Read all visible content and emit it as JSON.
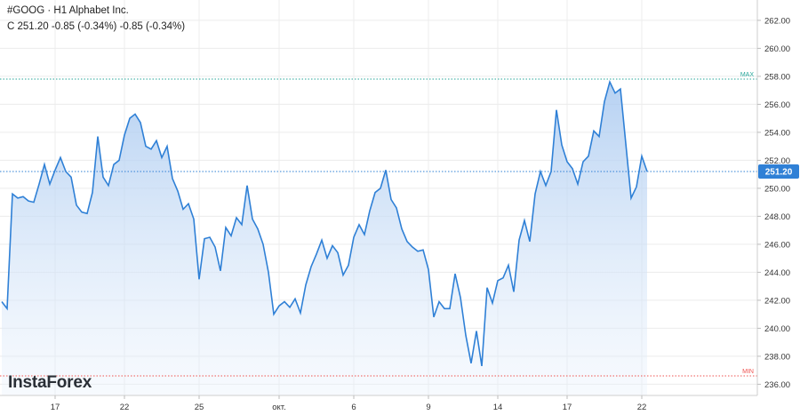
{
  "header": {
    "symbol_line": "#GOOG · H1 Alphabet Inc.",
    "quote_line": "C 251.20 -0.85 (-0.34%) -0.85 (-0.34%)"
  },
  "brand": "InstaForex",
  "colors": {
    "line": "#2f80d6",
    "fill_top": "#a9c9f0",
    "max_line": "#26a69a",
    "min_line": "#ef5350",
    "price_badge": "#2f80d6"
  },
  "chart_data": {
    "type": "area",
    "title": "",
    "xlabel": "",
    "ylabel": "",
    "ylim": [
      235.2,
      263.2
    ],
    "y_ticks": [
      "262.00",
      "260.00",
      "258.00",
      "256.00",
      "254.00",
      "252.00",
      "250.00",
      "248.00",
      "246.00",
      "244.00",
      "242.00",
      "240.00",
      "238.00",
      "236.00"
    ],
    "x_ticks": [
      {
        "label": "17",
        "index": 10
      },
      {
        "label": "22",
        "index": 23
      },
      {
        "label": "25",
        "index": 37
      },
      {
        "label": "окт.",
        "index": 52
      },
      {
        "label": "6",
        "index": 66
      },
      {
        "label": "9",
        "index": 80
      },
      {
        "label": "14",
        "index": 93
      },
      {
        "label": "17",
        "index": 106
      },
      {
        "label": "22",
        "index": 120
      }
    ],
    "max_label": "MAX",
    "max_value": 257.8,
    "min_label": "MIN",
    "min_value": 236.6,
    "last_price_label": "251.20",
    "last_price": 251.2,
    "grid": true,
    "series": [
      {
        "values": [
          241.9,
          241.4,
          249.6,
          249.3,
          249.4,
          249.1,
          249.0,
          250.3,
          251.7,
          250.3,
          251.3,
          252.2,
          251.2,
          250.8,
          248.8,
          248.3,
          248.2,
          249.7,
          253.7,
          250.8,
          250.2,
          251.7,
          252.0,
          253.8,
          255.0,
          255.3,
          254.7,
          253.0,
          252.8,
          253.4,
          252.2,
          253.0,
          250.7,
          249.8,
          248.5,
          248.9,
          247.8,
          243.5,
          246.4,
          246.5,
          245.8,
          244.1,
          247.2,
          246.6,
          247.9,
          247.4,
          250.2,
          247.8,
          247.1,
          246.0,
          244.0,
          241.0,
          241.6,
          241.9,
          241.5,
          242.1,
          241.1,
          243.1,
          244.4,
          245.3,
          246.3,
          245.0,
          245.9,
          245.4,
          243.8,
          244.5,
          246.5,
          247.4,
          246.7,
          248.4,
          249.7,
          250.0,
          251.3,
          249.2,
          248.6,
          247.1,
          246.2,
          245.8,
          245.5,
          245.6,
          244.2,
          240.8,
          241.9,
          241.4,
          241.4,
          243.9,
          242.2,
          239.5,
          237.5,
          239.8,
          237.3,
          242.9,
          241.8,
          243.4,
          243.6,
          244.5,
          242.6,
          246.3,
          247.7,
          246.2,
          249.6,
          251.2,
          250.2,
          251.2,
          255.6,
          253.1,
          251.9,
          251.4,
          250.3,
          251.9,
          252.3,
          254.1,
          253.7,
          256.2,
          257.6,
          256.8,
          257.1,
          253.2,
          249.3,
          250.1,
          252.3,
          251.2
        ]
      }
    ]
  }
}
